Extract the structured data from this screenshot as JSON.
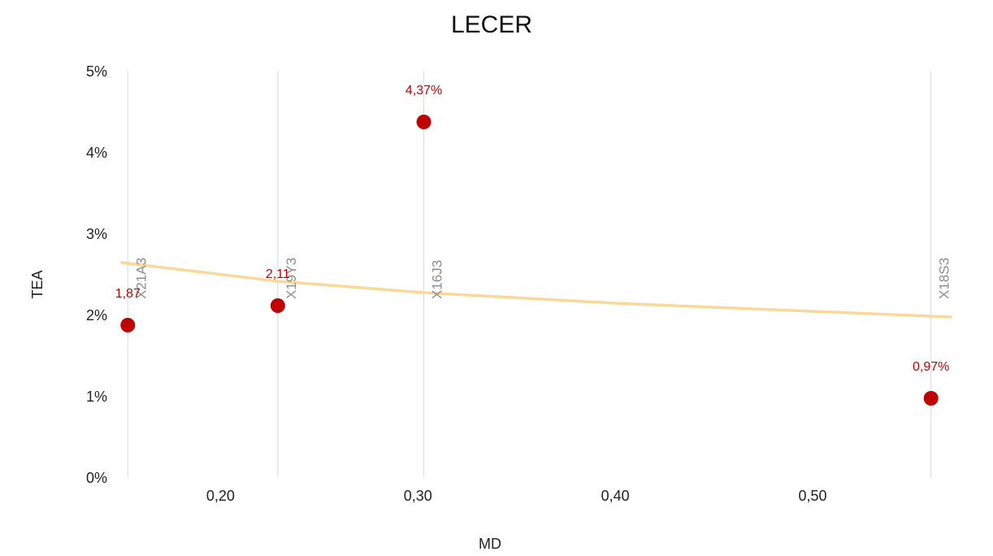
{
  "chart_data": {
    "type": "scatter",
    "title": "LECER",
    "xlabel": "MD",
    "ylabel": "TEA",
    "xlim": [
      0.15,
      0.57
    ],
    "ylim": [
      0,
      5
    ],
    "x_ticks": [
      {
        "value": 0.2,
        "label": "0,20"
      },
      {
        "value": 0.3,
        "label": "0,30"
      },
      {
        "value": 0.4,
        "label": "0,40"
      },
      {
        "value": 0.5,
        "label": "0,50"
      }
    ],
    "y_ticks": [
      {
        "value": 0,
        "label": "0%"
      },
      {
        "value": 1,
        "label": "1%"
      },
      {
        "value": 2,
        "label": "2%"
      },
      {
        "value": 3,
        "label": "3%"
      },
      {
        "value": 4,
        "label": "4%"
      },
      {
        "value": 5,
        "label": "5%"
      }
    ],
    "points": [
      {
        "name": "X21A3",
        "x": 0.153,
        "y": 1.87,
        "label": "1,87"
      },
      {
        "name": "X19Y3",
        "x": 0.229,
        "y": 2.11,
        "label": "2,11"
      },
      {
        "name": "X16J3",
        "x": 0.303,
        "y": 4.37,
        "label": "4,37%"
      },
      {
        "name": "X18S3",
        "x": 0.56,
        "y": 0.97,
        "label": "0,97%"
      }
    ],
    "trendline": {
      "type": "logarithmic",
      "points": [
        {
          "x": 0.15,
          "y": 2.64
        },
        {
          "x": 0.229,
          "y": 2.41
        },
        {
          "x": 0.303,
          "y": 2.27
        },
        {
          "x": 0.4,
          "y": 2.14
        },
        {
          "x": 0.5,
          "y": 2.04
        },
        {
          "x": 0.57,
          "y": 1.97
        }
      ]
    },
    "grid": "vertical lines at points",
    "colors": {
      "points": "#c00000",
      "trendline": "#fbd89a",
      "gridlines": "#d9d9d9",
      "point_labels": "#c00000",
      "name_labels": "#8c8c8c"
    }
  }
}
